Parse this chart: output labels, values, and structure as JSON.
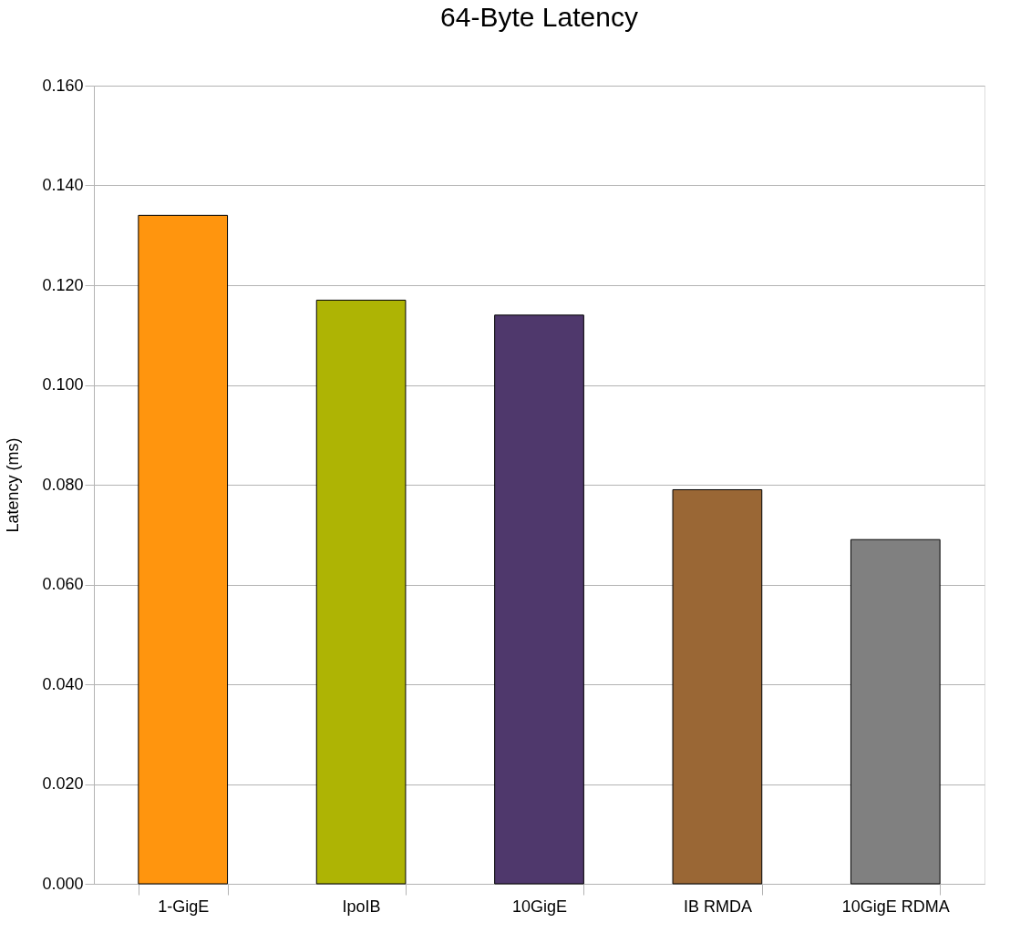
{
  "chart_data": {
    "type": "bar",
    "title": "64-Byte Latency",
    "ylabel": "Latency (ms)",
    "categories": [
      "1-GigE",
      "IpoIB",
      "10GigE",
      "IB RMDA",
      "10GigE RDMA"
    ],
    "values": [
      0.134,
      0.117,
      0.114,
      0.079,
      0.069
    ],
    "colors": [
      "#ff950e",
      "#aeb404",
      "#4f386c",
      "#9a6735",
      "#808080"
    ],
    "ylim": [
      0,
      0.16
    ],
    "yticks": [
      {
        "value": 0,
        "label": "0.000"
      },
      {
        "value": 0.02,
        "label": "0.020"
      },
      {
        "value": 0.04,
        "label": "0.040"
      },
      {
        "value": 0.06,
        "label": "0.060"
      },
      {
        "value": 0.08,
        "label": "0.080"
      },
      {
        "value": 0.1,
        "label": "0.100"
      },
      {
        "value": 0.12,
        "label": "0.120"
      },
      {
        "value": 0.14,
        "label": "0.140"
      },
      {
        "value": 0.16,
        "label": "0.160"
      }
    ],
    "grid": "y",
    "legend": false
  }
}
